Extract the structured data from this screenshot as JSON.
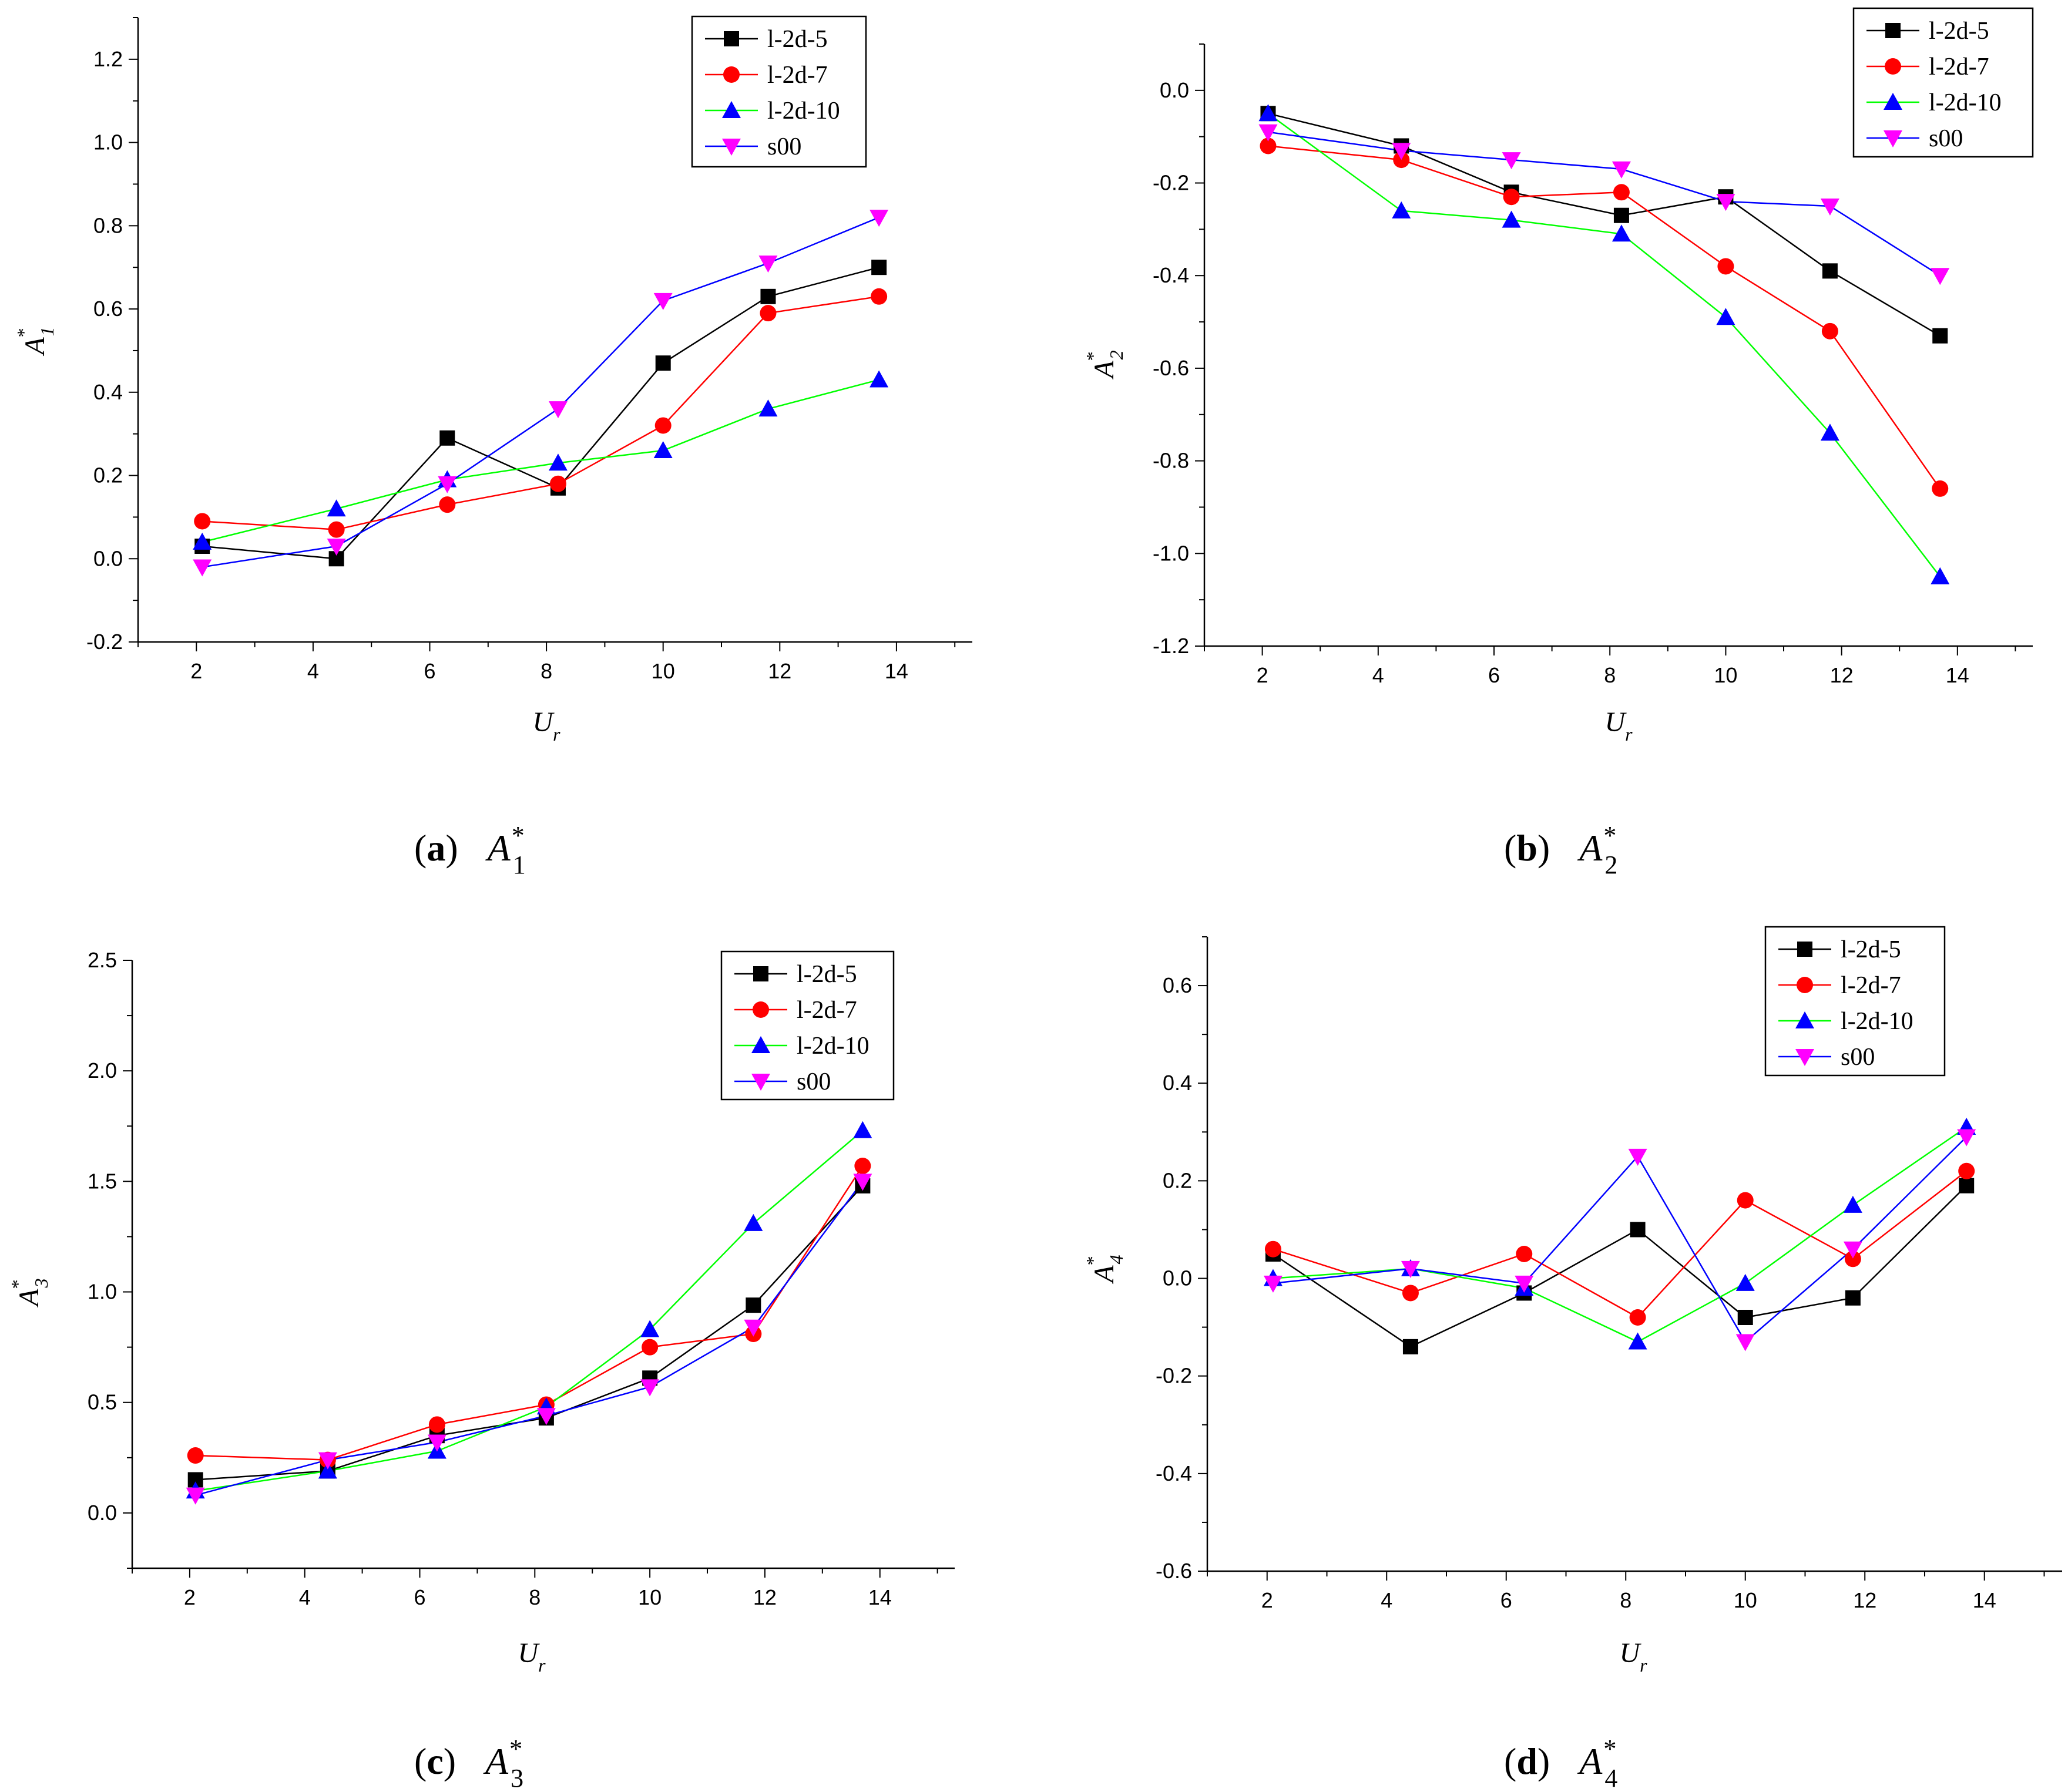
{
  "figure": {
    "title": ""
  },
  "colors": {
    "l-2d-5": "#000000",
    "l-2d-7": "#ff0000",
    "l-2d-10": "#00ff00",
    "l-2d-10_marker": "#0000ff",
    "s00": "#0000ff",
    "s00_marker": "#ff00ff"
  },
  "chart_data": [
    {
      "type": "line",
      "caption": {
        "letter": "a",
        "symbol": "A",
        "sub": "1",
        "sup": "*"
      },
      "xlabel": "U",
      "xlabel_sub": "r",
      "ylabel": "A",
      "ylabel_sub": "1",
      "ylabel_sup": "*",
      "xlim": [
        1,
        15.3
      ],
      "ylim": [
        -0.2,
        1.3
      ],
      "xticks": [
        "2",
        "4",
        "6",
        "8",
        "10",
        "12",
        "14"
      ],
      "xtick_values": [
        2,
        4,
        6,
        8,
        10,
        12,
        14
      ],
      "yticks": [
        "-0.2",
        "0.0",
        "0.2",
        "0.4",
        "0.6",
        "0.8",
        "1.0",
        "1.2"
      ],
      "ytick_values": [
        -0.2,
        0,
        0.2,
        0.4,
        0.6,
        0.8,
        1.0,
        1.2
      ],
      "legend_position": "top-right",
      "x": [
        2.1,
        4.4,
        6.3,
        8.2,
        10.0,
        11.8,
        13.7
      ],
      "series": [
        {
          "name": "l-2d-5",
          "marker": "square",
          "values": [
            0.03,
            0.0,
            0.29,
            0.17,
            0.47,
            0.63,
            0.7
          ]
        },
        {
          "name": "l-2d-7",
          "marker": "circle",
          "values": [
            0.09,
            0.07,
            0.13,
            0.18,
            0.32,
            0.59,
            0.63
          ]
        },
        {
          "name": "l-2d-10",
          "marker": "triangle-up",
          "values": [
            0.04,
            0.12,
            0.19,
            0.23,
            0.26,
            0.36,
            0.43
          ]
        },
        {
          "name": "s00",
          "marker": "triangle-down",
          "values": [
            -0.02,
            0.03,
            0.18,
            0.36,
            0.62,
            0.71,
            0.82
          ]
        }
      ]
    },
    {
      "type": "line",
      "caption": {
        "letter": "b",
        "symbol": "A",
        "sub": "2",
        "sup": "*"
      },
      "xlabel": "U",
      "xlabel_sub": "r",
      "ylabel": "A",
      "ylabel_sub": "2",
      "ylabel_sup": "*",
      "xlim": [
        1,
        15.3
      ],
      "ylim": [
        -1.2,
        0.1
      ],
      "xticks": [
        "2",
        "4",
        "6",
        "8",
        "10",
        "12",
        "14"
      ],
      "xtick_values": [
        2,
        4,
        6,
        8,
        10,
        12,
        14
      ],
      "yticks": [
        "-1.2",
        "-1.0",
        "-0.8",
        "-0.6",
        "-0.4",
        "-0.2",
        "0.0"
      ],
      "ytick_values": [
        -1.2,
        -1.0,
        -0.8,
        -0.6,
        -0.4,
        -0.2,
        0.0
      ],
      "legend_position": "top-right",
      "x": [
        2.1,
        4.4,
        6.3,
        8.2,
        10.0,
        11.8,
        13.7
      ],
      "series": [
        {
          "name": "l-2d-5",
          "marker": "square",
          "values": [
            -0.05,
            -0.12,
            -0.22,
            -0.27,
            -0.23,
            -0.39,
            -0.53
          ]
        },
        {
          "name": "l-2d-7",
          "marker": "circle",
          "values": [
            -0.12,
            -0.15,
            -0.23,
            -0.22,
            -0.38,
            -0.52,
            -0.86
          ]
        },
        {
          "name": "l-2d-10",
          "marker": "triangle-up",
          "values": [
            -0.05,
            -0.26,
            -0.28,
            -0.31,
            -0.49,
            -0.74,
            -1.05
          ]
        },
        {
          "name": "s00",
          "marker": "triangle-down",
          "values": [
            -0.09,
            -0.13,
            -0.15,
            -0.17,
            -0.24,
            -0.25,
            -0.4
          ]
        }
      ]
    },
    {
      "type": "line",
      "caption": {
        "letter": "c",
        "symbol": "A",
        "sub": "3",
        "sup": "*"
      },
      "xlabel": "U",
      "xlabel_sub": "r",
      "ylabel": "A",
      "ylabel_sub": "3",
      "ylabel_sup": "*",
      "xlim": [
        1,
        15.3
      ],
      "ylim": [
        -0.25,
        2.5
      ],
      "xticks": [
        "2",
        "4",
        "6",
        "8",
        "10",
        "12",
        "14"
      ],
      "xtick_values": [
        2,
        4,
        6,
        8,
        10,
        12,
        14
      ],
      "yticks": [
        "0.0",
        "0.5",
        "1.0",
        "1.5",
        "2.0",
        "2.5"
      ],
      "ytick_values": [
        0,
        0.5,
        1.0,
        1.5,
        2.0,
        2.5
      ],
      "legend_position": "top-right",
      "x": [
        2.1,
        4.4,
        6.3,
        8.2,
        10.0,
        11.8,
        13.7
      ],
      "series": [
        {
          "name": "l-2d-5",
          "marker": "square",
          "values": [
            0.15,
            0.19,
            0.35,
            0.43,
            0.61,
            0.94,
            1.48
          ]
        },
        {
          "name": "l-2d-7",
          "marker": "circle",
          "values": [
            0.26,
            0.24,
            0.4,
            0.49,
            0.75,
            0.81,
            1.57
          ]
        },
        {
          "name": "l-2d-10",
          "marker": "triangle-up",
          "values": [
            0.1,
            0.19,
            0.28,
            0.48,
            0.83,
            1.31,
            1.73
          ]
        },
        {
          "name": "s00",
          "marker": "triangle-down",
          "values": [
            0.08,
            0.24,
            0.32,
            0.44,
            0.57,
            0.84,
            1.5
          ]
        }
      ]
    },
    {
      "type": "line",
      "caption": {
        "letter": "d",
        "symbol": "A",
        "sub": "4",
        "sup": "*"
      },
      "xlabel": "U",
      "xlabel_sub": "r",
      "ylabel": "A",
      "ylabel_sub": "4",
      "ylabel_sup": "*",
      "xlim": [
        1,
        15.3
      ],
      "ylim": [
        -0.6,
        0.7
      ],
      "xticks": [
        "2",
        "4",
        "6",
        "8",
        "10",
        "12",
        "14"
      ],
      "xtick_values": [
        2,
        4,
        6,
        8,
        10,
        12,
        14
      ],
      "yticks": [
        "-0.6",
        "-0.4",
        "-0.2",
        "0.0",
        "0.2",
        "0.4",
        "0.6"
      ],
      "ytick_values": [
        -0.6,
        -0.4,
        -0.2,
        0,
        0.2,
        0.4,
        0.6
      ],
      "legend_position": "top-right",
      "x": [
        2.1,
        4.4,
        6.3,
        8.2,
        10.0,
        11.8,
        13.7
      ],
      "series": [
        {
          "name": "l-2d-5",
          "marker": "square",
          "values": [
            0.05,
            -0.14,
            -0.03,
            0.1,
            -0.08,
            -0.04,
            0.19
          ]
        },
        {
          "name": "l-2d-7",
          "marker": "circle",
          "values": [
            0.06,
            -0.03,
            0.05,
            -0.08,
            0.16,
            0.04,
            0.22
          ]
        },
        {
          "name": "l-2d-10",
          "marker": "triangle-up",
          "values": [
            0.0,
            0.02,
            -0.02,
            -0.13,
            -0.01,
            0.15,
            0.31
          ]
        },
        {
          "name": "s00",
          "marker": "triangle-down",
          "values": [
            -0.01,
            0.02,
            -0.01,
            0.25,
            -0.13,
            0.06,
            0.29
          ]
        }
      ]
    }
  ]
}
